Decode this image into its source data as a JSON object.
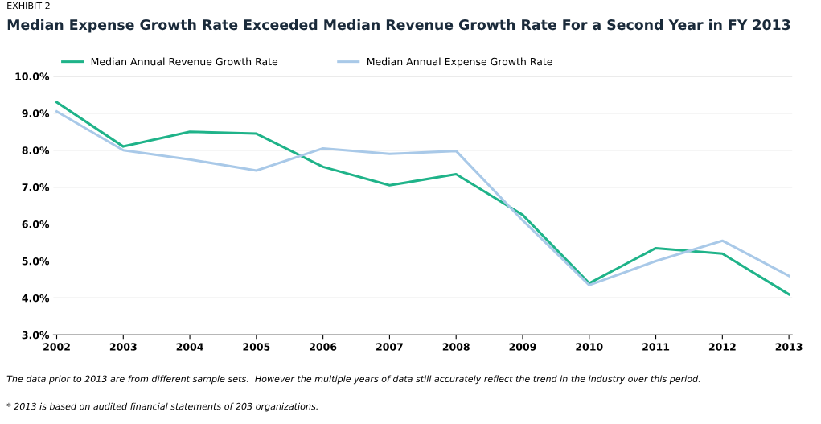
{
  "chart_data": {
    "type": "line",
    "title": "Median Expense Growth Rate Exceeded Median Revenue Growth Rate For a Second Year in FY 2013",
    "categories": [
      "2002",
      "2003",
      "2004",
      "2005",
      "2006",
      "2007",
      "2008",
      "2009",
      "2010",
      "2011",
      "2012",
      "2013"
    ],
    "series": [
      {
        "name": "Median Annual Revenue Growth Rate",
        "color": "#1fb389",
        "values": [
          9.3,
          8.1,
          8.5,
          8.45,
          7.55,
          7.05,
          7.35,
          6.25,
          4.4,
          5.35,
          5.2,
          4.1
        ]
      },
      {
        "name": "Median Annual Expense Growth Rate",
        "color": "#a9c9e8",
        "values": [
          9.05,
          8.0,
          7.75,
          7.45,
          8.05,
          7.9,
          7.98,
          6.1,
          4.35,
          5.0,
          5.55,
          4.6
        ]
      }
    ],
    "ylim": [
      3,
      10
    ],
    "yticks": [
      {
        "value": 3,
        "label": "3.0%"
      },
      {
        "value": 4,
        "label": "4.0%"
      },
      {
        "value": 5,
        "label": "5.0%"
      },
      {
        "value": 6,
        "label": "6.0%"
      },
      {
        "value": 7,
        "label": "7.0%"
      },
      {
        "value": 8,
        "label": "8.0%"
      },
      {
        "value": 9,
        "label": "9.0%"
      },
      {
        "value": 10,
        "label": "10.0%"
      }
    ],
    "grid": "y",
    "legend": "top left",
    "annotations": [
      "EXHIBIT 2",
      "The data prior to 2013 are from different sample sets.  However the multiple years of data still accurately reflect the trend in the industry over this period.",
      "* 2013 is based on audited financial statements of 203 organizations."
    ]
  }
}
